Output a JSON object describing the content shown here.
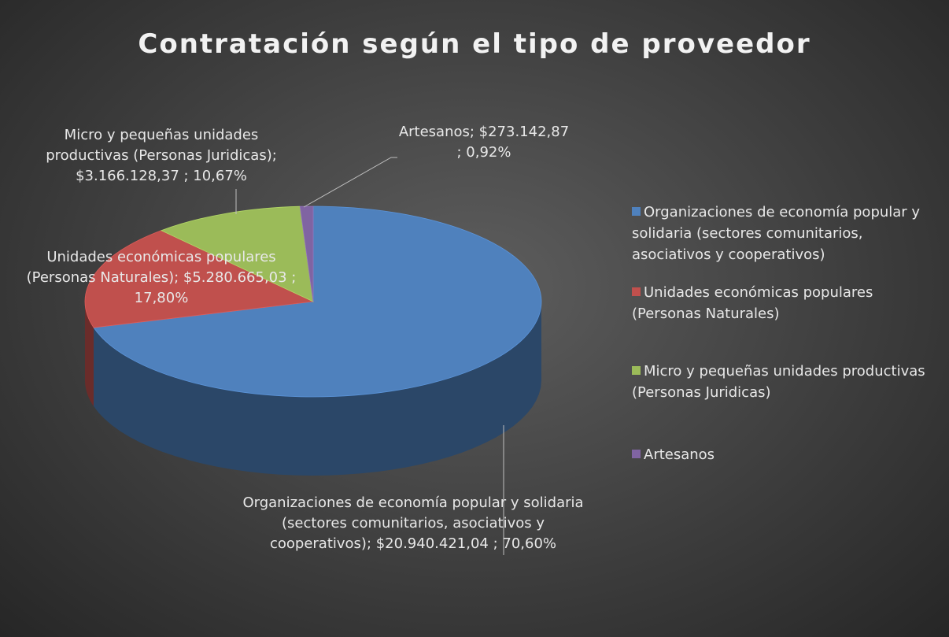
{
  "chart_data": {
    "type": "pie3d",
    "title": "Contratación según el tipo de proveedor",
    "categories": [
      "Organizaciones de economía popular y solidaria (sectores comunitarios, asociativos y cooperativos)",
      "Unidades económicas populares (Personas Naturales)",
      "Micro y pequeñas unidades productivas (Personas Juridicas)",
      "Artesanos"
    ],
    "values": [
      20940421.04,
      5280665.03,
      3166128.37,
      273142.87
    ],
    "data_labels": [
      "Organizaciones de economía popular y solidaria (sectores comunitarios, asociativos y cooperativos);  $20.940.421,04 ; 70,60%",
      "Unidades económicas populares (Personas Naturales); $5.280.665,03 ; 17,80%",
      "Micro y pequeñas unidades productivas (Personas Juridicas); $3.166.128,37 ; 10,67%",
      "Artesanos; $273.142,87 ; 0,92%"
    ],
    "colors": [
      "#4f81bd",
      "#c0504d",
      "#9bbb59",
      "#8064a2"
    ],
    "legend": "right"
  }
}
